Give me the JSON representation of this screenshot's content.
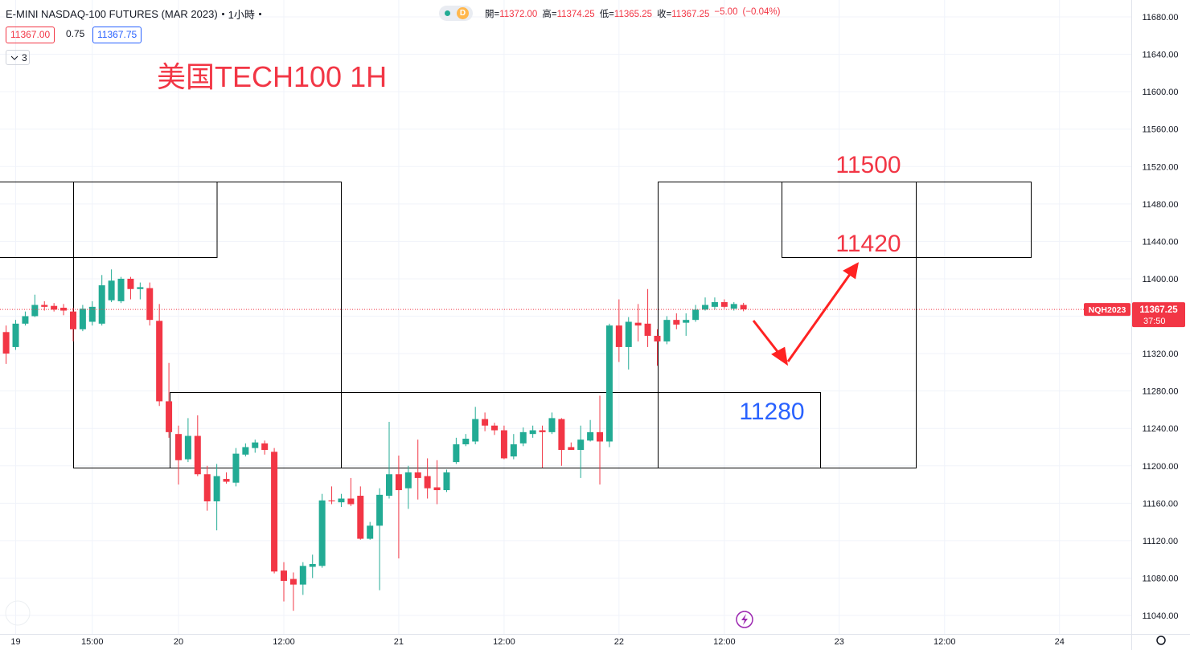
{
  "chart_data": {
    "type": "candlestick",
    "title": "E-MINI NASDAQ-100 FUTURES (MAR 2023)",
    "interval": "1小時",
    "ohlc_header": [
      {
        "name": "開=",
        "value": 11372,
        "label": "11372.00"
      },
      {
        "name": "高=",
        "value": 11374.25,
        "label": "11374.25"
      },
      {
        "name": "低=",
        "value": 11365.25,
        "label": "11365.25"
      },
      {
        "name": "收=",
        "value": 11367.25,
        "label": "11367.25"
      }
    ],
    "change": {
      "value": -5,
      "label": "−5.00"
    },
    "change_pct": {
      "value": -0.04,
      "label": "(−0.04%)"
    },
    "bid": {
      "value": 11367,
      "label": "11367.00"
    },
    "spread": 0.75,
    "ask": {
      "value": 11367.75,
      "label": "11367.75"
    },
    "indicator_count": 3,
    "badge": "D",
    "annotation_title": "美国TECH100 1H",
    "annotations": [
      11500,
      11420,
      11280
    ],
    "symbol": "NQH2023",
    "last_price": {
      "value": 11367.25,
      "label": "11367.25"
    },
    "countdown": "37:50",
    "up_color": "#22ab94",
    "down_color": "#f23645",
    "categories": [
      null,
      "19",
      null,
      null,
      null,
      null,
      null,
      null,
      null,
      "15:00",
      null,
      null,
      null,
      null,
      null,
      null,
      null,
      null,
      "20",
      null,
      null,
      null,
      null,
      null,
      null,
      null,
      null,
      null,
      null,
      "12:00",
      null,
      null,
      null,
      null,
      null,
      null,
      null,
      null,
      null,
      null,
      null,
      "21",
      null,
      null,
      null,
      null,
      null,
      null,
      null,
      null,
      null,
      null,
      "12:00",
      null,
      null,
      null,
      null,
      null,
      null,
      null,
      null,
      null,
      null,
      null,
      "22",
      null,
      null,
      null,
      null,
      null,
      null,
      null,
      null,
      null,
      null,
      "12:00",
      null,
      null,
      null,
      null,
      null,
      null,
      null,
      null,
      null,
      null,
      null,
      "23",
      null,
      null,
      null,
      null,
      null,
      null,
      null,
      null,
      null,
      null,
      "12:00",
      null,
      null,
      null,
      null,
      null,
      null,
      null,
      null,
      null,
      null,
      null,
      "24",
      null,
      null,
      null,
      null,
      null,
      null,
      null
    ],
    "open": [
      11343,
      11327,
      11352,
      11360,
      11372,
      11371,
      11369,
      11365,
      11346,
      11354,
      11352,
      11377,
      11376,
      11400,
      11389,
      11390,
      11355,
      11269,
      11234,
      11207,
      11232,
      11191,
      11162,
      11186,
      11182,
      11212,
      11219,
      11224,
      11215,
      11088,
      11079,
      11073,
      11092,
      11093,
      11163,
      11161,
      11165,
      11168,
      11122,
      11136,
      11168,
      11191,
      11176,
      11193,
      11189,
      11177,
      11174,
      11204,
      11223,
      11226,
      11250,
      11243,
      11238,
      11210,
      11224,
      11234,
      11238,
      11236,
      11250,
      11220,
      11217,
      11227,
      11236,
      11226,
      11350,
      11327,
      11353,
      11352,
      11339,
      11333,
      11356,
      11353,
      11356,
      11367,
      11370,
      11375,
      11368,
      11372,
      null,
      null,
      null,
      null,
      null,
      null,
      null,
      null,
      null,
      null,
      null,
      null,
      null,
      null,
      null,
      null,
      null,
      null,
      null,
      null,
      null,
      null,
      null,
      null,
      null,
      null,
      null,
      null,
      null,
      null,
      null,
      null,
      null,
      null,
      null,
      null,
      null,
      null,
      null,
      null
    ],
    "high": [
      11350,
      11356,
      11365,
      11383,
      11376,
      11374,
      11373,
      11369,
      11372,
      11376,
      11404,
      11410,
      11402,
      11402,
      11396,
      11396,
      11373,
      11310,
      11243,
      11251,
      11254,
      11200,
      11202,
      11193,
      11219,
      11224,
      11228,
      11227,
      11219,
      11097,
      11086,
      11097,
      11105,
      11170,
      11178,
      11170,
      11187,
      11178,
      11140,
      11176,
      11247,
      11211,
      11200,
      11228,
      11208,
      11206,
      11196,
      11230,
      11234,
      11263,
      11257,
      11246,
      11243,
      11234,
      11241,
      11243,
      11243,
      11257,
      11251,
      11225,
      11243,
      11249,
      11275,
      11352,
      11378,
      11359,
      11373,
      11389,
      11346,
      11360,
      11363,
      11363,
      11372,
      11380,
      11380,
      11378,
      11375,
      11374.25,
      null,
      null,
      null,
      null,
      null,
      null,
      null,
      null,
      null,
      null,
      null,
      null,
      null,
      null,
      null,
      null,
      null,
      null,
      null,
      null,
      null,
      null,
      null,
      null,
      null,
      null,
      null,
      null,
      null,
      null,
      null,
      null,
      null,
      null,
      null,
      null,
      null,
      null,
      null,
      null
    ],
    "low": [
      11309,
      11324,
      11350,
      11359,
      11366,
      11365,
      11361,
      11333,
      11344,
      11350,
      11350,
      11375,
      11374,
      11378,
      11378,
      11350,
      11264,
      11230,
      11180,
      11204,
      11189,
      11152,
      11131,
      11181,
      11178,
      11210,
      11214,
      11212,
      11085,
      11055,
      11045,
      11062,
      11080,
      11091,
      11159,
      11156,
      11157,
      11121,
      11121,
      11067,
      11165,
      11101,
      11154,
      11164,
      11165,
      11159,
      11172,
      11202,
      11221,
      11223,
      11237,
      11233,
      11207,
      11207,
      11221,
      11230,
      11198,
      11234,
      11200,
      11217,
      11187,
      11226,
      11180,
      11220,
      11311,
      11303,
      11333,
      11327,
      11307,
      11330,
      11346,
      11339,
      11354,
      11366,
      11367,
      11368,
      11366,
      11365.25,
      null,
      null,
      null,
      null,
      null,
      null,
      null,
      null,
      null,
      null,
      null,
      null,
      null,
      null,
      null,
      null,
      null,
      null,
      null,
      null,
      null,
      null,
      null,
      null,
      null,
      null,
      null,
      null,
      null,
      null,
      null,
      null,
      null,
      null,
      null,
      null,
      null,
      null,
      null,
      null
    ],
    "close": [
      11320,
      11352,
      11360,
      11372,
      11370,
      11367,
      11366,
      11346,
      11368,
      11370,
      11393,
      11398,
      11400,
      11389,
      11391,
      11356,
      11269,
      11236,
      11206,
      11232,
      11191,
      11162,
      11189,
      11183,
      11213,
      11220,
      11225,
      11217,
      11087,
      11077,
      11073,
      11093,
      11095,
      11163,
      11162,
      11165,
      11159,
      11122,
      11136,
      11169,
      11191,
      11174,
      11193,
      11187,
      11176,
      11174,
      11193,
      11223,
      11229,
      11250,
      11243,
      11238,
      11208,
      11223,
      11236,
      11238,
      11236,
      11251,
      11217,
      11217,
      11228,
      11236,
      11226,
      11350,
      11327,
      11354,
      11350,
      11339,
      11333,
      11356,
      11351,
      11356,
      11367,
      11372,
      11375,
      11370,
      11373,
      11367.25,
      null,
      null,
      null,
      null,
      null,
      null,
      null,
      null,
      null,
      null,
      null,
      null,
      null,
      null,
      null,
      null,
      null,
      null,
      null,
      null,
      null,
      null,
      null,
      null,
      null,
      null,
      null,
      null,
      null,
      null,
      null,
      null,
      null,
      null,
      null,
      null,
      null,
      null,
      null,
      null
    ],
    "ylim": [
      11019.4,
      11698.04
    ],
    "yticks": [
      {
        "value": 11040,
        "label": "11040.00"
      },
      {
        "value": 11080,
        "label": "11080.00"
      },
      {
        "value": 11120,
        "label": "11120.00"
      },
      {
        "value": 11160,
        "label": "11160.00"
      },
      {
        "value": 11200,
        "label": "11200.00"
      },
      {
        "value": 11240,
        "label": "11240.00"
      },
      {
        "value": 11280,
        "label": "11280.00"
      },
      {
        "value": 11320,
        "label": "11320.00"
      },
      {
        "value": 11360,
        "label": "11360.00"
      },
      {
        "value": 11400,
        "label": "11400.00"
      },
      {
        "value": 11440,
        "label": "11440.00"
      },
      {
        "value": 11480,
        "label": "11480.00"
      },
      {
        "value": 11520,
        "label": "11520.00"
      },
      {
        "value": 11560,
        "label": "11560.00"
      },
      {
        "value": 11600,
        "label": "11600.00"
      },
      {
        "value": 11640,
        "label": "11640.00"
      },
      {
        "value": 11680,
        "label": "11680.00"
      }
    ],
    "grid": true
  }
}
